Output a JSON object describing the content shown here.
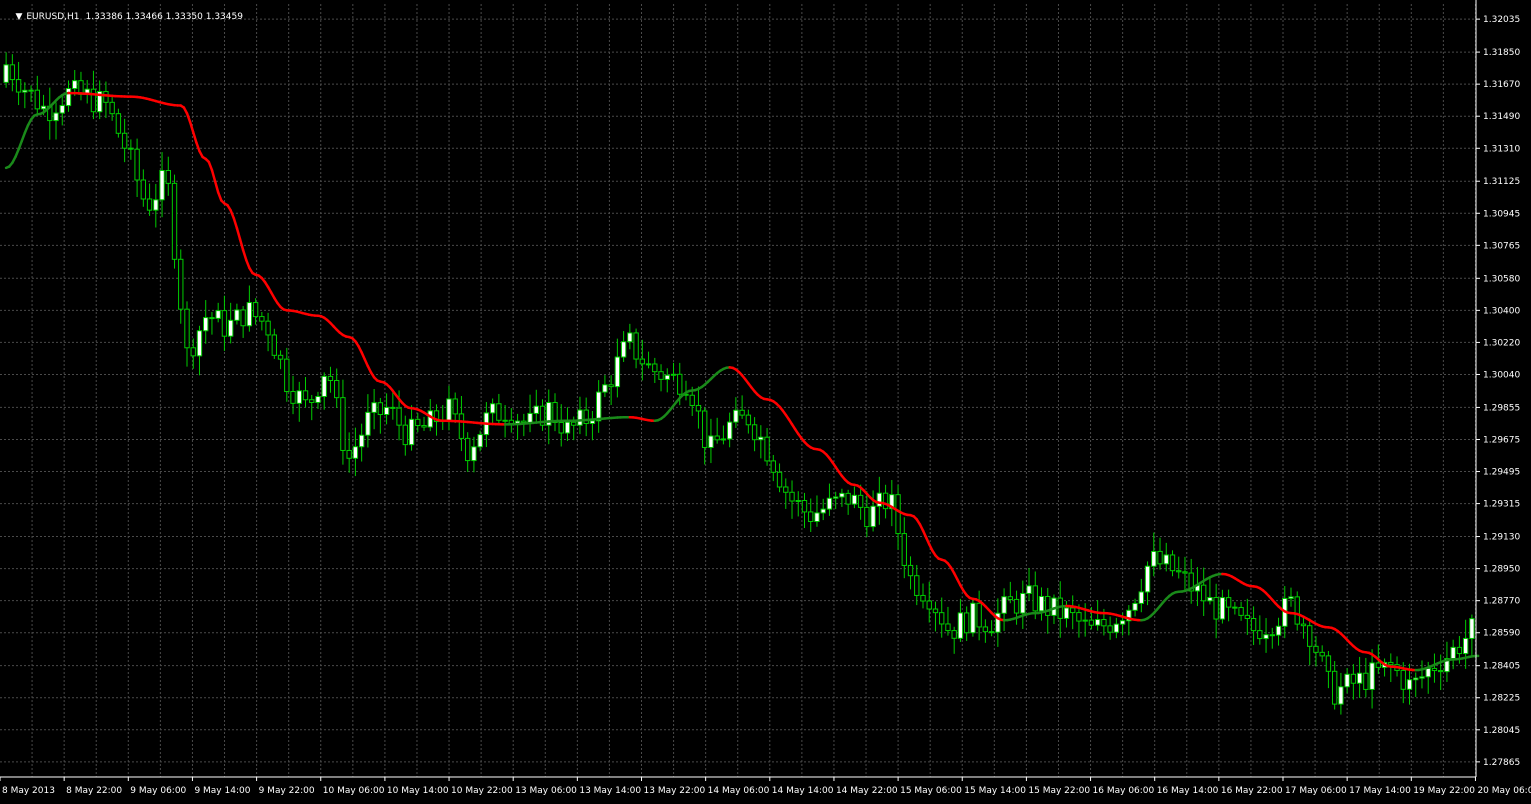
{
  "chart_data": {
    "type": "candlestick",
    "symbol_label": "EURUSD,H1",
    "ohlc_label": "1.33386 1.33466 1.33350 1.33459",
    "ylim": [
      1.2778,
      1.3212
    ],
    "y_ticks": [
      "1.32035",
      "1.31850",
      "1.31670",
      "1.31490",
      "1.31310",
      "1.31125",
      "1.30945",
      "1.30765",
      "1.30580",
      "1.30400",
      "1.30220",
      "1.30040",
      "1.29855",
      "1.29675",
      "1.29495",
      "1.29315",
      "1.29130",
      "1.28950",
      "1.28770",
      "1.28590",
      "1.28405",
      "1.28225",
      "1.28045",
      "1.27865"
    ],
    "x_ticks": [
      "8 May 2013",
      "8 May 22:00",
      "9 May 06:00",
      "9 May 14:00",
      "9 May 22:00",
      "10 May 06:00",
      "10 May 14:00",
      "10 May 22:00",
      "13 May 06:00",
      "13 May 14:00",
      "13 May 22:00",
      "14 May 06:00",
      "14 May 14:00",
      "14 May 22:00",
      "15 May 06:00",
      "15 May 14:00",
      "15 May 22:00",
      "16 May 06:00",
      "16 May 14:00",
      "16 May 22:00",
      "17 May 06:00",
      "17 May 14:00",
      "19 May 22:00",
      "20 May 06:00"
    ],
    "grid": true,
    "colors": {
      "background": "#000000",
      "grid": "#4a4a4a",
      "axis_text": "#ffffff",
      "bull_body": "#ffffff",
      "bear_body": "#000000",
      "wick": "#00cc00",
      "ma_down": "#ff0000",
      "ma_up": "#1a8a1a"
    },
    "candle_anchors": [
      [
        1.3168,
        1.3195,
        1.316,
        1.3178
      ],
      [
        1.3178,
        1.3185,
        1.3158,
        1.3164
      ],
      [
        1.316,
        1.3165,
        1.3145,
        1.3152
      ],
      [
        1.3158,
        1.3168,
        1.3152,
        1.3162
      ],
      [
        1.3162,
        1.3175,
        1.3155,
        1.316
      ],
      [
        1.3165,
        1.318,
        1.3148,
        1.3155
      ],
      [
        1.315,
        1.3158,
        1.3125,
        1.313
      ],
      [
        1.313,
        1.3135,
        1.3095,
        1.3098
      ],
      [
        1.31,
        1.3122,
        1.309,
        1.3115
      ],
      [
        1.3112,
        1.3118,
        1.301,
        1.3015
      ],
      [
        1.302,
        1.3045,
        1.3015,
        1.3038
      ],
      [
        1.304,
        1.305,
        1.302,
        1.303
      ],
      [
        1.303,
        1.305,
        1.302,
        1.304
      ],
      [
        1.304,
        1.3048,
        1.3025,
        1.3032
      ],
      [
        1.3032,
        1.304,
        1.2998,
        1.3
      ],
      [
        1.3005,
        1.301,
        1.2978,
        1.2985
      ],
      [
        1.2985,
        1.302,
        1.298,
        1.301
      ],
      [
        1.3,
        1.3005,
        1.294,
        1.2955
      ],
      [
        1.296,
        1.2985,
        1.2955,
        1.2978
      ],
      [
        1.2978,
        1.299,
        1.297,
        1.2985
      ],
      [
        1.2978,
        1.2985,
        1.296,
        1.297
      ],
      [
        1.2968,
        1.298,
        1.296,
        1.2975
      ],
      [
        1.2975,
        1.2992,
        1.2962,
        1.2985
      ],
      [
        1.298,
        1.299,
        1.295,
        1.2962
      ],
      [
        1.2965,
        1.299,
        1.2955,
        1.298
      ],
      [
        1.2978,
        1.2992,
        1.2948,
        1.2985
      ],
      [
        1.2985,
        1.2992,
        1.296,
        1.2975
      ],
      [
        1.2975,
        1.299,
        1.2965,
        1.2985
      ],
      [
        1.298,
        1.299,
        1.2968,
        1.2972
      ],
      [
        1.2972,
        1.2985,
        1.2965,
        1.298
      ],
      [
        1.2985,
        1.301,
        1.298,
        1.3
      ],
      [
        1.3,
        1.303,
        1.2995,
        1.3022
      ],
      [
        1.3015,
        1.302,
        1.3,
        1.3008
      ],
      [
        1.3008,
        1.3015,
        1.2998,
        1.3002
      ],
      [
        1.3005,
        1.3028,
        1.2995,
        1.3
      ],
      [
        1.2998,
        1.3002,
        1.295,
        1.296
      ],
      [
        1.2962,
        1.2985,
        1.295,
        1.2975
      ],
      [
        1.2972,
        1.2985,
        1.2965,
        1.298
      ],
      [
        1.298,
        1.299,
        1.2955,
        1.296
      ],
      [
        1.296,
        1.2965,
        1.293,
        1.2935
      ],
      [
        1.2935,
        1.2945,
        1.292,
        1.2925
      ],
      [
        1.2925,
        1.2935,
        1.291,
        1.293
      ],
      [
        1.293,
        1.294,
        1.2915,
        1.2935
      ],
      [
        1.2935,
        1.294,
        1.292,
        1.2925
      ],
      [
        1.2925,
        1.294,
        1.292,
        1.2935
      ],
      [
        1.2935,
        1.294,
        1.2885,
        1.289
      ],
      [
        1.289,
        1.29,
        1.287,
        1.288
      ],
      [
        1.288,
        1.2885,
        1.2855,
        1.286
      ],
      [
        1.286,
        1.2875,
        1.2845,
        1.2868
      ],
      [
        1.2862,
        1.287,
        1.285,
        1.2865
      ],
      [
        1.2865,
        1.288,
        1.2862,
        1.2875
      ],
      [
        1.2872,
        1.2885,
        1.2865,
        1.2878
      ],
      [
        1.2875,
        1.2882,
        1.2868,
        1.2872
      ],
      [
        1.2872,
        1.2878,
        1.286,
        1.2868
      ],
      [
        1.2868,
        1.2872,
        1.2855,
        1.286
      ],
      [
        1.286,
        1.2868,
        1.285,
        1.2865
      ],
      [
        1.2865,
        1.288,
        1.286,
        1.2875
      ],
      [
        1.2875,
        1.2905,
        1.287,
        1.29
      ],
      [
        1.29,
        1.292,
        1.289,
        1.2895
      ],
      [
        1.2895,
        1.291,
        1.288,
        1.2885
      ],
      [
        1.2885,
        1.29,
        1.287,
        1.2875
      ],
      [
        1.2875,
        1.2885,
        1.286,
        1.2868
      ],
      [
        1.2868,
        1.2875,
        1.2855,
        1.286
      ],
      [
        1.286,
        1.287,
        1.2855,
        1.2865
      ],
      [
        1.2865,
        1.288,
        1.286,
        1.2875
      ],
      [
        1.2875,
        1.2885,
        1.285,
        1.2858
      ],
      [
        1.2858,
        1.2862,
        1.282,
        1.2825
      ],
      [
        1.2825,
        1.284,
        1.28,
        1.283
      ],
      [
        1.283,
        1.2842,
        1.282,
        1.2835
      ],
      [
        1.2835,
        1.2848,
        1.2825,
        1.284
      ],
      [
        1.284,
        1.285,
        1.282,
        1.2828
      ],
      [
        1.2828,
        1.2845,
        1.282,
        1.284
      ],
      [
        1.284,
        1.2852,
        1.2835,
        1.2848
      ],
      [
        1.2848,
        1.2865,
        1.284,
        1.286
      ]
    ],
    "ma_anchors": [
      [
        0,
        1.312
      ],
      [
        5,
        1.315
      ],
      [
        10,
        1.3162
      ],
      [
        20,
        1.316
      ],
      [
        28,
        1.3155
      ],
      [
        32,
        1.3125
      ],
      [
        35,
        1.31
      ],
      [
        40,
        1.306
      ],
      [
        45,
        1.304
      ],
      [
        50,
        1.3037
      ],
      [
        55,
        1.3025
      ],
      [
        60,
        1.3
      ],
      [
        65,
        1.2985
      ],
      [
        70,
        1.2978
      ],
      [
        80,
        1.2976
      ],
      [
        90,
        1.2978
      ],
      [
        100,
        1.298
      ],
      [
        104,
        1.2978
      ],
      [
        110,
        1.2995
      ],
      [
        116,
        1.3008
      ],
      [
        122,
        1.299
      ],
      [
        130,
        1.2962
      ],
      [
        136,
        1.2942
      ],
      [
        140,
        1.2932
      ],
      [
        145,
        1.2925
      ],
      [
        150,
        1.29
      ],
      [
        155,
        1.2878
      ],
      [
        160,
        1.2866
      ],
      [
        165,
        1.287
      ],
      [
        170,
        1.2874
      ],
      [
        176,
        1.287
      ],
      [
        182,
        1.2866
      ],
      [
        188,
        1.2882
      ],
      [
        195,
        1.2892
      ],
      [
        200,
        1.2885
      ],
      [
        206,
        1.287
      ],
      [
        212,
        1.2862
      ],
      [
        218,
        1.2848
      ],
      [
        222,
        1.284
      ],
      [
        226,
        1.2838
      ],
      [
        232,
        1.2844
      ],
      [
        236,
        1.2846
      ]
    ]
  }
}
